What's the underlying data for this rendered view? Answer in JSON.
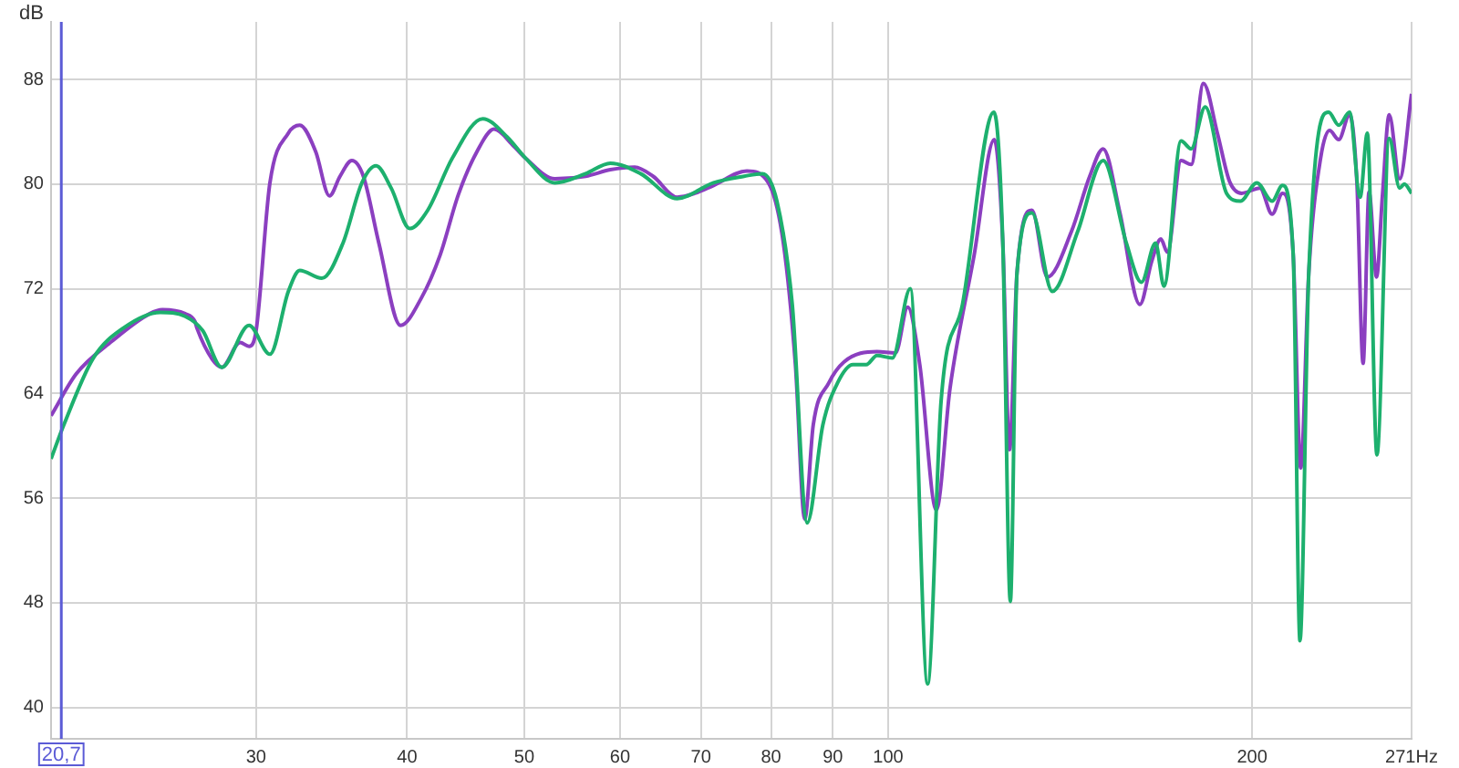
{
  "chart_data": {
    "type": "line",
    "ylabel": "dB",
    "xlim": [
      20.3,
      271
    ],
    "xticks": [
      30,
      40,
      50,
      60,
      70,
      80,
      90,
      100,
      200,
      {
        "value": 271,
        "label": "271Hz"
      }
    ],
    "ylim": [
      37.6,
      92.4
    ],
    "yticks": [
      40,
      48,
      56,
      64,
      72,
      80,
      88
    ],
    "log": "x",
    "grid": true,
    "legend": false,
    "marker": "none",
    "line_style": "solid",
    "ref_lines": [
      {
        "axis": "x",
        "value": 20.7,
        "label": "20,7",
        "color": "#5b5bd6"
      }
    ],
    "series": [
      {
        "color": "#1db06e",
        "x": [
          20.3,
          20.8,
          22.0,
          23.3,
          25.0,
          26.2,
          27.1,
          28.1,
          29.6,
          30.8,
          31.9,
          32.6,
          34.0,
          35.4,
          36.7,
          37.7,
          38.8,
          40.2,
          41.6,
          43.6,
          46.2,
          48.4,
          50.1,
          53.0,
          56.2,
          58.9,
          62.4,
          66.9,
          71.7,
          76.0,
          78.7,
          80.9,
          83.3,
          85.7,
          88.3,
          90.8,
          93.5,
          95.9,
          97.9,
          100.8,
          104.3,
          107.8,
          110.6,
          115.2,
          122.3,
          124.4,
          126.2,
          127.8,
          131.5,
          136.7,
          143.5,
          150.6,
          157.4,
          162.0,
          166.4,
          169.1,
          174.7,
          178.1,
          182.9,
          190.5,
          195.6,
          201.8,
          207.8,
          211.9,
          216.3,
          219.1,
          222.8,
          231.4,
          235.9,
          240.8,
          245.7,
          249.1,
          253.7,
          259.7,
          264.9,
          267.3,
          271
        ],
        "values": [
          59.0,
          61.6,
          66.7,
          69.0,
          70.2,
          69.9,
          68.8,
          66.0,
          69.2,
          67.0,
          71.8,
          73.4,
          72.8,
          75.5,
          80.1,
          81.4,
          79.7,
          76.6,
          78.0,
          82.0,
          85.0,
          83.6,
          82.0,
          80.1,
          80.8,
          81.6,
          80.8,
          78.9,
          80.1,
          80.6,
          80.8,
          78.7,
          70.8,
          54.1,
          61.6,
          64.8,
          66.2,
          66.2,
          66.9,
          66.7,
          72.0,
          41.8,
          63.4,
          70.8,
          85.5,
          75.5,
          48.1,
          73.2,
          77.8,
          71.8,
          76.4,
          81.8,
          75.5,
          72.5,
          75.5,
          72.2,
          83.3,
          82.7,
          85.9,
          79.3,
          78.7,
          80.1,
          78.7,
          79.9,
          74.6,
          45.1,
          73.2,
          85.5,
          84.5,
          85.5,
          79.0,
          83.9,
          59.3,
          83.5,
          79.7,
          80.0,
          79.3
        ]
      },
      {
        "color": "#8b3fc0",
        "x": [
          20.3,
          21.3,
          22.8,
          24.5,
          25.1,
          26.2,
          26.7,
          26.8,
          27.6,
          28.1,
          29.1,
          29.6,
          30.0,
          30.8,
          31.9,
          32.6,
          33.6,
          34.5,
          35.2,
          36.0,
          36.8,
          37.9,
          39.5,
          41.1,
          42.6,
          44.1,
          45.7,
          47.2,
          49.0,
          50.1,
          53.0,
          56.2,
          58.9,
          61.7,
          63.9,
          66.9,
          69.2,
          71.7,
          76.4,
          79.6,
          81.9,
          83.8,
          85.3,
          86.7,
          89.3,
          91.9,
          97.9,
          101.4,
          103.8,
          106.2,
          109.6,
          112.5,
          117.8,
          122.4,
          124.4,
          126.0,
          127.8,
          131.5,
          135.4,
          141.8,
          146.8,
          150.6,
          155.5,
          161.5,
          165.2,
          168.1,
          170.2,
          174.7,
          178.1,
          182.3,
          187.2,
          191.6,
          196.1,
          203.0,
          207.8,
          211.9,
          216.3,
          219.4,
          222.8,
          227.9,
          231.8,
          235.9,
          240.8,
          244.2,
          247.1,
          249.9,
          253.5,
          256.4,
          259.7,
          264.9,
          271
        ],
        "values": [
          62.3,
          65.5,
          68.0,
          70.1,
          70.4,
          70.1,
          69.5,
          69.0,
          66.6,
          66.0,
          67.9,
          67.6,
          68.8,
          80.1,
          83.9,
          84.5,
          82.5,
          79.1,
          80.6,
          81.8,
          80.6,
          75.5,
          69.2,
          71.3,
          74.6,
          79.2,
          82.5,
          84.2,
          82.9,
          82.0,
          80.4,
          80.6,
          81.1,
          81.3,
          80.6,
          79.0,
          79.3,
          79.9,
          81.0,
          80.1,
          75.5,
          66.2,
          54.4,
          61.6,
          64.8,
          66.4,
          67.2,
          67.1,
          70.6,
          66.2,
          55.1,
          64.4,
          74.6,
          83.4,
          75.5,
          59.7,
          73.2,
          78.0,
          72.9,
          76.4,
          80.6,
          82.7,
          77.8,
          70.8,
          74.1,
          75.8,
          74.8,
          81.8,
          81.5,
          87.7,
          83.9,
          80.2,
          79.3,
          79.7,
          77.7,
          79.3,
          74.6,
          58.3,
          73.2,
          82.0,
          84.1,
          83.4,
          85.3,
          80.1,
          66.3,
          79.4,
          72.9,
          79.2,
          85.3,
          80.4,
          86.9
        ]
      }
    ]
  }
}
